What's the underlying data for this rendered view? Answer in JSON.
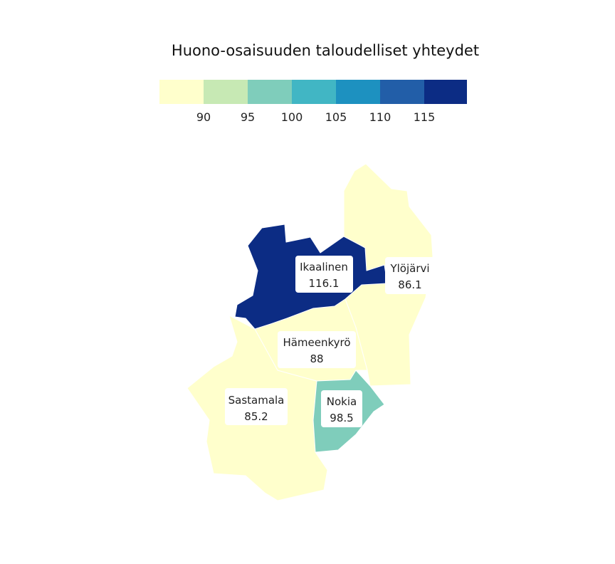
{
  "title": "Huono-osaisuuden taloudelliset yhteydet",
  "legend": {
    "colors": [
      "#ffffcc",
      "#c7e9b4",
      "#7fcdbb",
      "#41b6c4",
      "#1d91c0",
      "#225ea8",
      "#0c2c84"
    ],
    "ticks": [
      "90",
      "95",
      "100",
      "105",
      "110",
      "115"
    ]
  },
  "regions": [
    {
      "name": "Ikaalinen",
      "value": "116.1",
      "color": "#0c2c84"
    },
    {
      "name": "Ylöjärvi",
      "value": "86.1",
      "color": "#ffffcc"
    },
    {
      "name": "Hämeenkyrö",
      "value": "88",
      "color": "#ffffcc"
    },
    {
      "name": "Sastamala",
      "value": "85.2",
      "color": "#ffffcc"
    },
    {
      "name": "Nokia",
      "value": "98.5",
      "color": "#7fcdbb"
    }
  ]
}
